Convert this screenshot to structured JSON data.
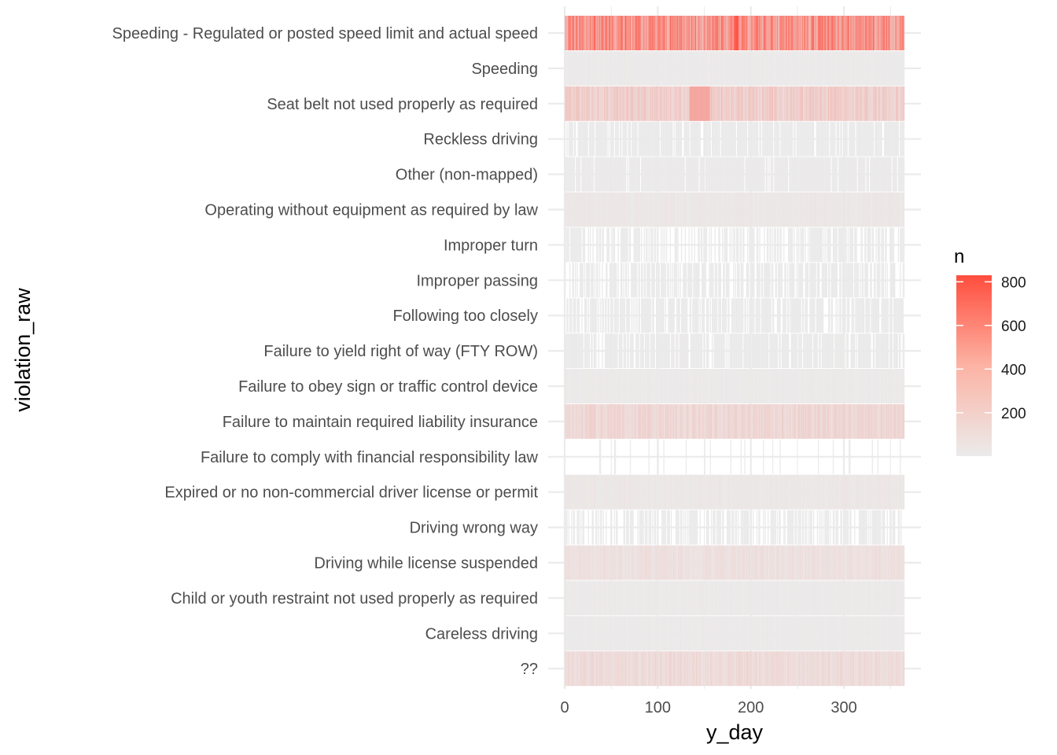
{
  "chart_data": {
    "type": "heatmap",
    "title": "",
    "xlabel": "y_day",
    "ylabel": "violation_raw",
    "xlim": [
      0,
      365
    ],
    "x_ticks": [
      0,
      100,
      200,
      300
    ],
    "x_tick_labels": [
      "0",
      "100",
      "200",
      "300"
    ],
    "grid": true,
    "legend_position": "right",
    "legend": {
      "title": "n",
      "min": 1,
      "max": 830,
      "ticks": [
        200,
        400,
        600,
        800
      ],
      "tick_labels": [
        "200",
        "400",
        "600",
        "800"
      ],
      "low_color": "#ebebeb",
      "high_color": "#ff4d3d"
    },
    "rows": [
      {
        "label": "Speeding - Regulated or posted speed limit and actual speed",
        "typical_n": 480,
        "coverage": 1.0
      },
      {
        "label": "Speeding",
        "typical_n": 10,
        "coverage": 1.0
      },
      {
        "label": "Seat belt not used properly as required",
        "typical_n": 160,
        "coverage": 1.0
      },
      {
        "label": "Reckless driving",
        "typical_n": 4,
        "coverage": 0.85
      },
      {
        "label": "Other (non-mapped)",
        "typical_n": 8,
        "coverage": 0.93
      },
      {
        "label": "Operating without equipment as required by law",
        "typical_n": 25,
        "coverage": 1.0
      },
      {
        "label": "Improper turn",
        "typical_n": 3,
        "coverage": 0.6
      },
      {
        "label": "Improper passing",
        "typical_n": 4,
        "coverage": 0.7
      },
      {
        "label": "Following too closely",
        "typical_n": 4,
        "coverage": 0.78
      },
      {
        "label": "Failure to yield right of way (FTY ROW)",
        "typical_n": 6,
        "coverage": 0.85
      },
      {
        "label": "Failure to obey sign or traffic control device",
        "typical_n": 12,
        "coverage": 1.0
      },
      {
        "label": "Failure to maintain required liability insurance",
        "typical_n": 110,
        "coverage": 1.0
      },
      {
        "label": "Failure to comply with financial responsibility law",
        "typical_n": 2,
        "coverage": 0.05
      },
      {
        "label": "Expired or no non-commercial driver license or permit",
        "typical_n": 25,
        "coverage": 1.0
      },
      {
        "label": "Driving wrong way",
        "typical_n": 3,
        "coverage": 0.6
      },
      {
        "label": "Driving while license suspended",
        "typical_n": 60,
        "coverage": 1.0
      },
      {
        "label": "Child or youth restraint not used properly as required",
        "typical_n": 12,
        "coverage": 1.0
      },
      {
        "label": "Careless driving",
        "typical_n": 10,
        "coverage": 1.0
      },
      {
        "label": "??",
        "typical_n": 90,
        "coverage": 1.0
      }
    ]
  }
}
